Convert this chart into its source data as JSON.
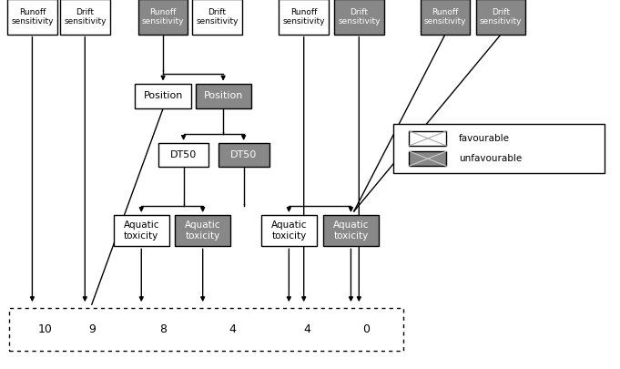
{
  "bg_color": "#ffffff",
  "gray_color": "#888888",
  "black": "#000000",
  "white": "#ffffff",
  "header_styles": [
    "white",
    "white",
    "gray",
    "white",
    "white",
    "gray",
    "gray",
    "gray"
  ],
  "header_labels": [
    "Runoff\nsensitivity",
    "Drift\nsensitivity",
    "Runoff\nsensitivity",
    "Drift\nsensitivity",
    "Runoff\nsensitivity",
    "Drift\nsensitivity",
    "Runoff\nsensitivity",
    "Drift\nsensitivity"
  ],
  "scores": [
    [
      "10",
      0.073
    ],
    [
      "9",
      0.148
    ],
    [
      "8",
      0.263
    ],
    [
      "4",
      0.375
    ],
    [
      "4",
      0.496
    ],
    [
      "0",
      0.59
    ]
  ]
}
